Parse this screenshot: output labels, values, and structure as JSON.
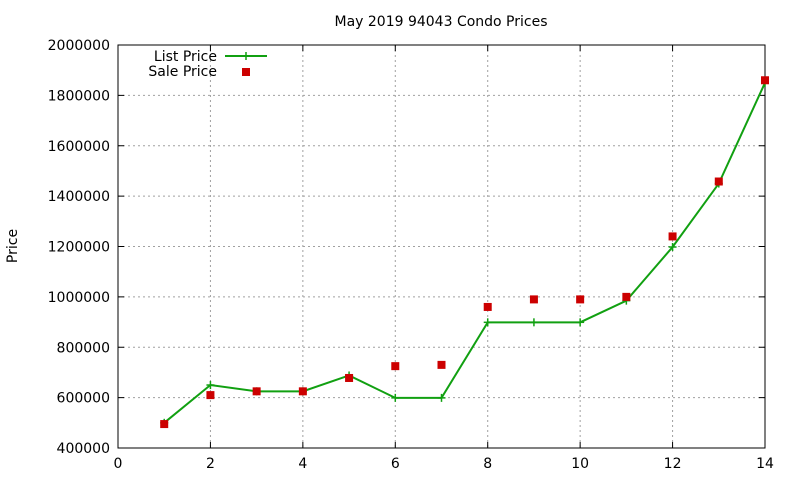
{
  "chart_data": {
    "type": "line",
    "title": "May 2019 94043 Condo Prices",
    "xlabel": "",
    "ylabel": "Price",
    "xlim": [
      0,
      14
    ],
    "ylim": [
      400000,
      2000000
    ],
    "x_ticks": [
      0,
      2,
      4,
      6,
      8,
      10,
      12,
      14
    ],
    "y_ticks": [
      400000,
      600000,
      800000,
      1000000,
      1200000,
      1400000,
      1600000,
      1800000,
      2000000
    ],
    "grid": true,
    "legend_position": "top-left",
    "series": [
      {
        "name": "List Price",
        "style": "line+plus",
        "color": "#11a011",
        "points": [
          [
            1,
            500000
          ],
          [
            2,
            650000
          ],
          [
            3,
            625000
          ],
          [
            4,
            625000
          ],
          [
            5,
            688000
          ],
          [
            6,
            599000
          ],
          [
            7,
            599000
          ],
          [
            8,
            899000
          ],
          [
            9,
            899000
          ],
          [
            10,
            899000
          ],
          [
            11,
            985000
          ],
          [
            12,
            1198000
          ],
          [
            13,
            1450000
          ],
          [
            14,
            1850000
          ]
        ]
      },
      {
        "name": "Sale Price",
        "style": "square",
        "color": "#cc0000",
        "points": [
          [
            1,
            495000
          ],
          [
            2,
            610000
          ],
          [
            3,
            625000
          ],
          [
            4,
            625000
          ],
          [
            5,
            678000
          ],
          [
            6,
            725000
          ],
          [
            7,
            730000
          ],
          [
            8,
            960000
          ],
          [
            9,
            990000
          ],
          [
            10,
            990000
          ],
          [
            11,
            1000000
          ],
          [
            12,
            1240000
          ],
          [
            13,
            1458000
          ],
          [
            14,
            1860000
          ]
        ]
      }
    ]
  }
}
